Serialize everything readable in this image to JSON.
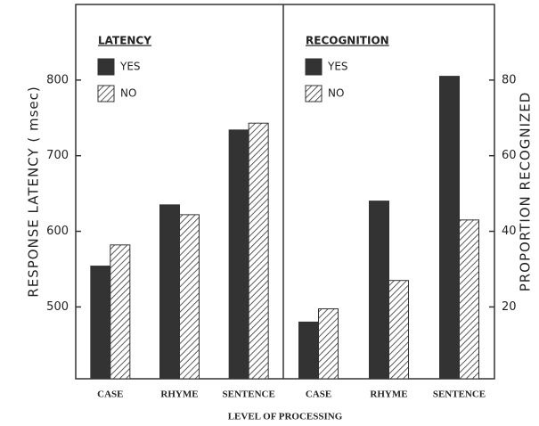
{
  "chart_data": [
    {
      "type": "bar",
      "title": "LATENCY",
      "ylabel": "RESPONSE LATENCY ( msec)",
      "xlabel": "LEVEL OF PROCESSING",
      "categories": [
        "CASE",
        "RHYME",
        "SENTENCE"
      ],
      "series": [
        {
          "name": "YES",
          "color": "#333333",
          "values": [
            554,
            635,
            734
          ]
        },
        {
          "name": "NO",
          "color": "#ffffff",
          "pattern": "hatch",
          "values": [
            582,
            622,
            743
          ]
        }
      ],
      "ylim": [
        405,
        900
      ],
      "yticks": [
        500,
        600,
        700,
        800
      ],
      "y_axis": "left"
    },
    {
      "type": "bar",
      "title": "RECOGNITION",
      "ylabel": "PROPORTION RECOGNIZED",
      "categories": [
        "CASE",
        "RHYME",
        "SENTENCE"
      ],
      "series": [
        {
          "name": "YES",
          "color": "#333333",
          "values": [
            16,
            48,
            81
          ]
        },
        {
          "name": "NO",
          "color": "#ffffff",
          "pattern": "hatch",
          "values": [
            19.5,
            27,
            43
          ]
        }
      ],
      "ylim": [
        1,
        100
      ],
      "yticks": [
        20,
        40,
        60,
        80
      ],
      "y_axis": "right"
    }
  ]
}
